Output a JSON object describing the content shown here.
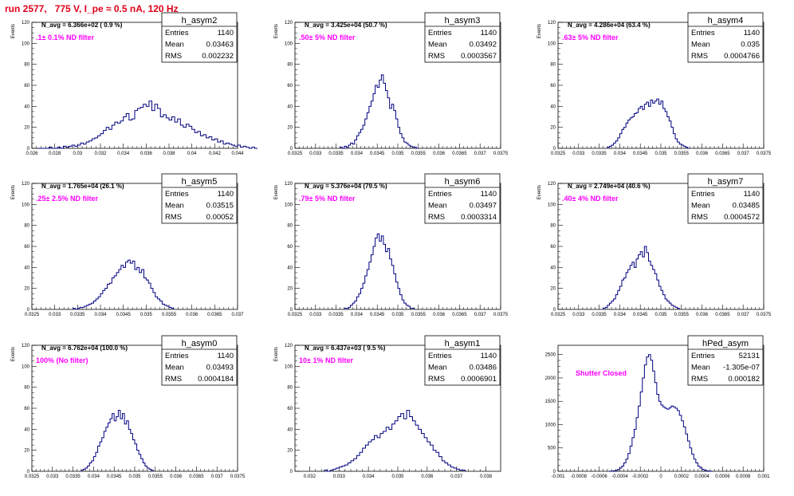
{
  "title": "run 2577,   775 V, I_pe ≈ 0.5 nA, 120 Hz",
  "colors": {
    "title": "#e0001a",
    "hist": "#000080",
    "filter_text": "#ff00ff"
  },
  "chart_data": [
    {
      "type": "bar",
      "name": "h_asym2",
      "n_avg": "N_avg = 6.366e+02 ( 0.9 %)",
      "filter": ".1± 0.1% ND filter",
      "stats": {
        "entries_label": "Entries",
        "entries": "1140",
        "mean_label": "Mean",
        "mean": "0.03463",
        "rms_label": "RMS",
        "rms": "0.002232"
      },
      "xlabel": "",
      "ylabel": "Events",
      "xlim": [
        0.026,
        0.044
      ],
      "ylim": [
        0,
        120
      ],
      "xticks": [
        "0.026",
        "0.028",
        "0.03",
        "0.032",
        "0.034",
        "0.036",
        "0.038",
        "0.04",
        "0.042",
        "0.044"
      ],
      "yticks": [
        "0",
        "20",
        "40",
        "60",
        "80",
        "100",
        "120"
      ],
      "bins": {
        "start": 0.0265,
        "width": 0.00025,
        "counts": [
          0,
          0,
          0,
          0,
          1,
          0,
          0,
          1,
          0,
          2,
          1,
          2,
          3,
          2,
          3,
          5,
          4,
          6,
          7,
          9,
          10,
          12,
          14,
          17,
          20,
          18,
          22,
          25,
          24,
          26,
          30,
          33,
          27,
          28,
          36,
          38,
          39,
          42,
          40,
          45,
          36,
          42,
          38,
          30,
          32,
          29,
          27,
          30,
          25,
          28,
          22,
          20,
          23,
          21,
          18,
          15,
          16,
          12,
          13,
          10,
          11,
          8,
          9,
          6,
          7,
          4,
          5,
          4,
          3,
          2,
          3,
          1,
          2,
          1,
          0,
          1,
          0
        ]
      }
    },
    {
      "type": "bar",
      "name": "h_asym3",
      "n_avg": "N_avg = 3.425e+04 (50.7 %)",
      "filter": ".50± 5% ND filter",
      "stats": {
        "entries_label": "Entries",
        "entries": "1140",
        "mean_label": "Mean",
        "mean": "0.03492",
        "rms_label": "RMS",
        "rms": "0.0003567"
      },
      "xlabel": "",
      "ylabel": "Events",
      "xlim": [
        0.0325,
        0.0375
      ],
      "ylim": [
        0,
        120
      ],
      "xticks": [
        "0.0325",
        "0.033",
        "0.0335",
        "0.034",
        "0.0345",
        "0.035",
        "0.0355",
        "0.036",
        "0.0365",
        "0.037",
        "0.0375"
      ],
      "yticks": [
        "0",
        "20",
        "40",
        "60",
        "80",
        "100",
        "120"
      ],
      "bins": {
        "start": 0.0336,
        "width": 5e-05,
        "counts": [
          1,
          0,
          2,
          1,
          3,
          5,
          4,
          8,
          12,
          15,
          18,
          22,
          28,
          34,
          40,
          45,
          52,
          60,
          58,
          65,
          70,
          62,
          55,
          48,
          38,
          42,
          36,
          28,
          20,
          14,
          10,
          6,
          5,
          3,
          2,
          1,
          1,
          0
        ]
      }
    },
    {
      "type": "bar",
      "name": "h_asym4",
      "n_avg": "N_avg = 4.286e+04 (63.4 %)",
      "filter": ".63± 5% ND filter",
      "stats": {
        "entries_label": "Entries",
        "entries": "1140",
        "mean_label": "Mean",
        "mean": "0.035",
        "rms_label": "RMS",
        "rms": "0.0004766"
      },
      "xlabel": "",
      "ylabel": "Events",
      "xlim": [
        0.0325,
        0.0375
      ],
      "ylim": [
        0,
        120
      ],
      "xticks": [
        "0.0325",
        "0.033",
        "0.0335",
        "0.034",
        "0.0345",
        "0.035",
        "0.0355",
        "0.036",
        "0.0365",
        "0.037",
        "0.0375"
      ],
      "yticks": [
        "0",
        "20",
        "40",
        "60",
        "80",
        "100",
        "120"
      ],
      "bins": {
        "start": 0.0337,
        "width": 5e-05,
        "counts": [
          1,
          2,
          3,
          5,
          7,
          10,
          14,
          18,
          20,
          24,
          27,
          29,
          30,
          33,
          34,
          38,
          40,
          37,
          42,
          44,
          40,
          46,
          43,
          45,
          47,
          42,
          45,
          38,
          35,
          30,
          26,
          20,
          14,
          9,
          6,
          4,
          3,
          2,
          1,
          0
        ]
      }
    },
    {
      "type": "bar",
      "name": "h_asym5",
      "n_avg": "N_avg = 1.765e+04 (26.1 %)",
      "filter": ".25± 2.5% ND filter",
      "stats": {
        "entries_label": "Entries",
        "entries": "1140",
        "mean_label": "Mean",
        "mean": "0.03515",
        "rms_label": "RMS",
        "rms": "0.00052"
      },
      "xlabel": "",
      "ylabel": "Events",
      "xlim": [
        0.0325,
        0.037
      ],
      "ylim": [
        0,
        120
      ],
      "xticks": [
        "0.0325",
        "0.033",
        "0.0335",
        "0.034",
        "0.0345",
        "0.035",
        "0.0355",
        "0.036",
        "0.0365",
        "0.037"
      ],
      "yticks": [
        "0",
        "20",
        "40",
        "60",
        "80",
        "100",
        "120"
      ],
      "bins": {
        "start": 0.0334,
        "width": 5e-05,
        "counts": [
          1,
          0,
          1,
          2,
          2,
          3,
          4,
          5,
          6,
          8,
          10,
          12,
          15,
          18,
          20,
          24,
          25,
          30,
          32,
          35,
          38,
          42,
          40,
          45,
          47,
          44,
          46,
          38,
          40,
          35,
          38,
          30,
          28,
          25,
          20,
          16,
          12,
          10,
          8,
          5,
          4,
          3,
          2,
          1
        ]
      }
    },
    {
      "type": "bar",
      "name": "h_asym6",
      "n_avg": "N_avg = 5.376e+04 (79.5 %)",
      "filter": ".79± 5% ND filter",
      "stats": {
        "entries_label": "Entries",
        "entries": "1140",
        "mean_label": "Mean",
        "mean": "0.03497",
        "rms_label": "RMS",
        "rms": "0.0003314"
      },
      "xlabel": "",
      "ylabel": "Events",
      "xlim": [
        0.0325,
        0.0375
      ],
      "ylim": [
        0,
        120
      ],
      "xticks": [
        "0.0325",
        "0.033",
        "0.0335",
        "0.034",
        "0.0345",
        "0.035",
        "0.0355",
        "0.036",
        "0.0365",
        "0.037",
        "0.0375"
      ],
      "yticks": [
        "0",
        "20",
        "40",
        "60",
        "80",
        "100",
        "120"
      ],
      "bins": {
        "start": 0.0337,
        "width": 5e-05,
        "counts": [
          1,
          1,
          2,
          4,
          6,
          8,
          12,
          15,
          20,
          25,
          32,
          38,
          45,
          52,
          60,
          68,
          72,
          65,
          70,
          62,
          55,
          58,
          48,
          42,
          34,
          26,
          20,
          14,
          9,
          6,
          4,
          3,
          1,
          1
        ]
      }
    },
    {
      "type": "bar",
      "name": "h_asym7",
      "n_avg": "N_avg = 2.749e+04 (40.6 %)",
      "filter": ".40± 4% ND filter",
      "stats": {
        "entries_label": "Entries",
        "entries": "1140",
        "mean_label": "Mean",
        "mean": "0.03485",
        "rms_label": "RMS",
        "rms": "0.0004572"
      },
      "xlabel": "",
      "ylabel": "Events",
      "xlim": [
        0.0325,
        0.0375
      ],
      "ylim": [
        0,
        120
      ],
      "xticks": [
        "0.0325",
        "0.033",
        "0.0335",
        "0.034",
        "0.0345",
        "0.035",
        "0.0355",
        "0.036",
        "0.0365",
        "0.037",
        "0.0375"
      ],
      "yticks": [
        "0",
        "20",
        "40",
        "60",
        "80",
        "100",
        "120"
      ],
      "bins": {
        "start": 0.0336,
        "width": 5e-05,
        "counts": [
          1,
          2,
          4,
          6,
          8,
          10,
          14,
          18,
          22,
          28,
          30,
          35,
          38,
          42,
          45,
          40,
          48,
          52,
          55,
          50,
          60,
          54,
          46,
          42,
          38,
          34,
          28,
          22,
          18,
          14,
          10,
          8,
          6,
          4,
          3,
          2,
          1
        ]
      }
    },
    {
      "type": "bar",
      "name": "h_asym0",
      "n_avg": "N_avg = 6.762e+04 (100.0 %)",
      "filter": "100% (No filter)",
      "stats": {
        "entries_label": "Entries",
        "entries": "1140",
        "mean_label": "Mean",
        "mean": "0.03493",
        "rms_label": "RMS",
        "rms": "0.0004184"
      },
      "xlabel": "",
      "ylabel": "Events",
      "xlim": [
        0.0325,
        0.0375
      ],
      "ylim": [
        0,
        120
      ],
      "xticks": [
        "0.0325",
        "0.033",
        "0.0335",
        "0.034",
        "0.0345",
        "0.035",
        "0.0355",
        "0.036",
        "0.0365",
        "0.037",
        "0.0375"
      ],
      "yticks": [
        "0",
        "20",
        "40",
        "60",
        "80",
        "100",
        "120"
      ],
      "bins": {
        "start": 0.0337,
        "width": 5e-05,
        "counts": [
          1,
          2,
          3,
          5,
          8,
          10,
          14,
          18,
          24,
          28,
          32,
          38,
          42,
          46,
          50,
          55,
          48,
          52,
          58,
          50,
          55,
          45,
          48,
          40,
          36,
          30,
          26,
          20,
          16,
          12,
          8,
          5,
          3,
          2,
          1
        ]
      }
    },
    {
      "type": "bar",
      "name": "h_asym1",
      "n_avg": "N_avg = 6.437e+03 ( 9.5 %)",
      "filter": "10± 1% ND filter",
      "stats": {
        "entries_label": "Entries",
        "entries": "1140",
        "mean_label": "Mean",
        "mean": "0.03486",
        "rms_label": "RMS",
        "rms": "0.0006901"
      },
      "xlabel": "",
      "ylabel": "Events",
      "xlim": [
        0.0315,
        0.0385
      ],
      "ylim": [
        0,
        120
      ],
      "xticks": [
        "0.032",
        "0.033",
        "0.034",
        "0.035",
        "0.036",
        "0.037",
        "0.038"
      ],
      "yticks": [
        "0",
        "20",
        "40",
        "60",
        "80",
        "100",
        "120"
      ],
      "bins": {
        "start": 0.0325,
        "width": 0.0001,
        "counts": [
          1,
          0,
          1,
          2,
          3,
          4,
          5,
          6,
          8,
          10,
          12,
          15,
          18,
          22,
          25,
          28,
          30,
          34,
          32,
          36,
          38,
          42,
          40,
          45,
          48,
          52,
          55,
          50,
          58,
          52,
          48,
          44,
          40,
          36,
          32,
          28,
          25,
          20,
          18,
          14,
          10,
          8,
          6,
          4,
          3,
          2,
          1,
          1
        ]
      }
    },
    {
      "type": "bar",
      "name": "hPed_asym",
      "n_avg": "",
      "filter": "Shutter Closed",
      "stats": {
        "entries_label": "Entries",
        "entries": "52131",
        "mean_label": "Mean",
        "mean": "-1.305e-07",
        "rms_label": "RMS",
        "rms": "0.000182"
      },
      "xlabel": "",
      "ylabel": "",
      "xlim": [
        -0.001,
        0.001
      ],
      "ylim": [
        0,
        2700
      ],
      "xticks": [
        "-0.001",
        "-0.0008",
        "-0.0006",
        "-0.0004",
        "-0.0002",
        "0",
        "0.0002",
        "0.0004",
        "0.0006",
        "0.0008",
        "0.001"
      ],
      "yticks": [
        "0",
        "500",
        "1000",
        "1500",
        "2000",
        "2500"
      ],
      "bins": {
        "start": -0.0005,
        "width": 2e-05,
        "counts": [
          2,
          5,
          10,
          20,
          40,
          70,
          110,
          180,
          260,
          380,
          540,
          720,
          900,
          1150,
          1400,
          1700,
          2000,
          2280,
          2450,
          2500,
          2380,
          2150,
          1900,
          1650,
          1500,
          1420,
          1380,
          1350,
          1330,
          1360,
          1400,
          1380,
          1350,
          1300,
          1200,
          1080,
          950,
          800,
          650,
          500,
          370,
          260,
          180,
          110,
          70,
          40,
          20,
          10,
          5,
          2
        ]
      }
    }
  ]
}
